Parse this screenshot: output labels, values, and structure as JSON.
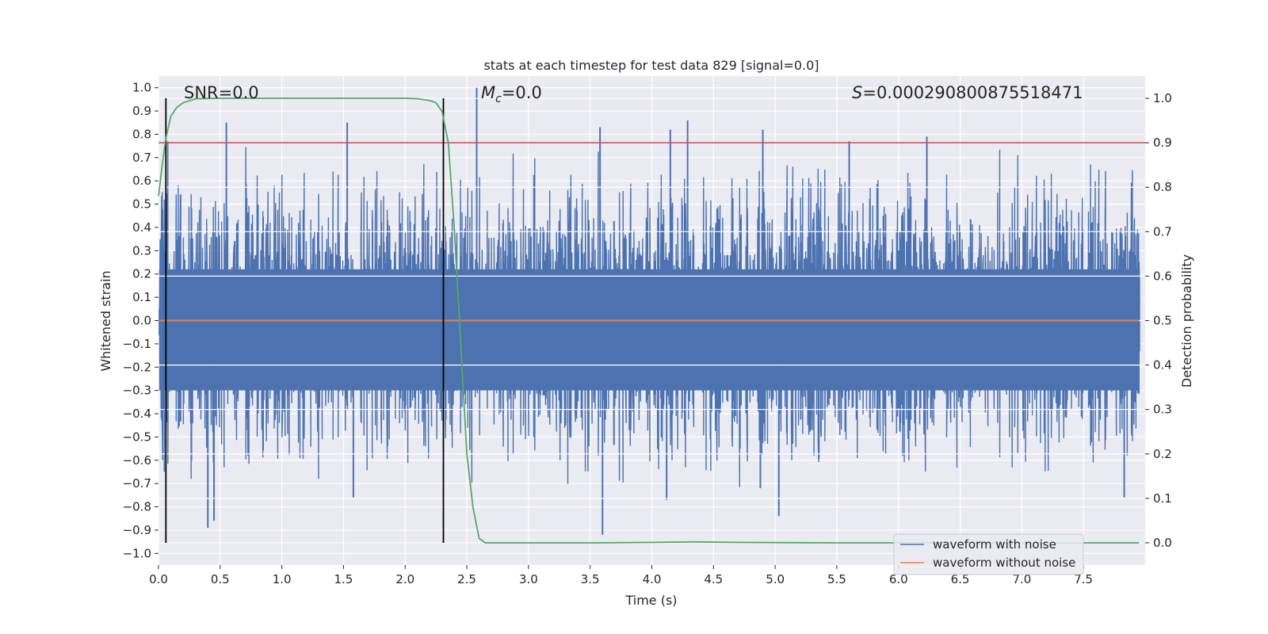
{
  "chart_data": {
    "type": "line",
    "title": "stats at each timestep for test data 829 [signal=0.0]",
    "xlabel": "Time (s)",
    "ylabel": "Whitened strain",
    "y2label": "Detection probability",
    "xlim": [
      0.0,
      8.0
    ],
    "ylim": [
      -1.05,
      1.05
    ],
    "y2lim": [
      -0.05,
      1.05
    ],
    "x_ticks": [
      0.0,
      0.5,
      1.0,
      1.5,
      2.0,
      2.5,
      3.0,
      3.5,
      4.0,
      4.5,
      5.0,
      5.5,
      6.0,
      6.5,
      7.0,
      7.5
    ],
    "x_tick_labels": [
      "0.0",
      "0.5",
      "1.0",
      "1.5",
      "2.0",
      "2.5",
      "3.0",
      "3.5",
      "4.0",
      "4.5",
      "5.0",
      "5.5",
      "6.0",
      "6.5",
      "7.0",
      "7.5"
    ],
    "y_ticks": [
      1.0,
      0.9,
      0.8,
      0.7,
      0.6,
      0.5,
      0.4,
      0.3,
      0.2,
      0.1,
      0.0,
      -0.1,
      -0.2,
      -0.3,
      -0.4,
      -0.5,
      -0.6,
      -0.7,
      -0.8,
      -0.9,
      -1.0
    ],
    "y_tick_labels": [
      "1.0",
      "0.9",
      "0.8",
      "0.7",
      "0.6",
      "0.5",
      "0.4",
      "0.3",
      "0.2",
      "0.1",
      "0.0",
      "−0.1",
      "−0.2",
      "−0.3",
      "−0.4",
      "−0.5",
      "−0.6",
      "−0.7",
      "−0.8",
      "−0.9",
      "−1.0"
    ],
    "y2_ticks": [
      1.0,
      0.9,
      0.8,
      0.7,
      0.6,
      0.5,
      0.4,
      0.3,
      0.2,
      0.1,
      0.0
    ],
    "y2_tick_labels": [
      "1.0",
      "0.9",
      "0.8",
      "0.7",
      "0.6",
      "0.5",
      "0.4",
      "0.3",
      "0.2",
      "0.1",
      "0.0"
    ],
    "grid": true,
    "legend_position": "bottom-right",
    "series": [
      {
        "name": "waveform with noise",
        "color": "#4c72b0",
        "axis": "left",
        "kind": "noise",
        "typical_range": [
          -0.45,
          0.55
        ],
        "spikes": [
          {
            "x": 0.55,
            "y": 0.85
          },
          {
            "x": 1.53,
            "y": 0.85
          },
          {
            "x": 2.58,
            "y": 1.0
          },
          {
            "x": 3.58,
            "y": 0.83
          },
          {
            "x": 4.15,
            "y": 0.82
          },
          {
            "x": 4.29,
            "y": 0.86
          },
          {
            "x": 4.9,
            "y": 0.82
          },
          {
            "x": 5.6,
            "y": 0.77
          },
          {
            "x": 6.23,
            "y": 0.79
          },
          {
            "x": 0.4,
            "y": -0.89
          },
          {
            "x": 0.45,
            "y": -0.86
          },
          {
            "x": 3.6,
            "y": -0.92
          },
          {
            "x": 4.12,
            "y": -0.77
          },
          {
            "x": 4.88,
            "y": -0.72
          },
          {
            "x": 5.03,
            "y": -0.84
          },
          {
            "x": 7.83,
            "y": -0.76
          },
          {
            "x": 1.58,
            "y": -0.76
          }
        ]
      },
      {
        "name": "waveform without noise",
        "color": "#dd8452",
        "axis": "left",
        "x": [
          0.0,
          7.95
        ],
        "y": [
          0.0,
          0.0
        ]
      },
      {
        "name": "Detection probability",
        "color": "#55a868",
        "axis": "right",
        "x": [
          0.0,
          0.03,
          0.06,
          0.1,
          0.15,
          0.2,
          0.3,
          0.5,
          1.0,
          1.5,
          2.0,
          2.1,
          2.2,
          2.25,
          2.3,
          2.35,
          2.4,
          2.45,
          2.5,
          2.55,
          2.6,
          2.65,
          2.8,
          3.5,
          4.0,
          4.35,
          4.7,
          5.5,
          6.5,
          7.95
        ],
        "y": [
          0.78,
          0.85,
          0.91,
          0.96,
          0.98,
          0.99,
          0.999,
          1.0,
          1.0,
          1.0,
          1.0,
          0.999,
          0.995,
          0.99,
          0.97,
          0.9,
          0.7,
          0.45,
          0.2,
          0.08,
          0.01,
          0.0,
          0.0,
          0.0,
          0.001,
          0.002,
          0.001,
          0.0,
          0.0,
          0.0
        ]
      }
    ],
    "threshold": {
      "value": 0.9,
      "axis": "right",
      "color": "#c44e52"
    },
    "vertical_lines": [
      {
        "x": 0.06,
        "color": "#000000"
      },
      {
        "x": 2.31,
        "color": "#000000"
      }
    ],
    "vertical_line_y_range": [
      0.0,
      1.0
    ],
    "annotations": {
      "snr": "SNR=0.0",
      "mc_symbol": "M",
      "mc_sub": "c",
      "mc_value": "=0.0",
      "s_symbol": "S",
      "s_value": "=0.000290800875518471"
    },
    "legend": [
      "waveform with noise",
      "waveform without noise"
    ]
  }
}
